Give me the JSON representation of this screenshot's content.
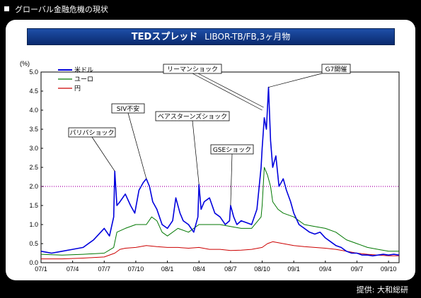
{
  "header": {
    "title": "グローバル金融危機の現状"
  },
  "chart_title": {
    "main": "TEDスプレッド",
    "sub": "LIBOR-TB/FB,3ヶ月物"
  },
  "credit": "提供: 大和総研",
  "colors": {
    "usd": "#0000dd",
    "eur": "#007700",
    "jpy": "#cc0000",
    "ref": "#aa00aa",
    "title_bg": "#1e4fa8"
  },
  "chart_data": {
    "type": "line",
    "ylabel": "(%)",
    "ylim": [
      0,
      5
    ],
    "yticks": [
      "0.0",
      "0.5",
      "1.0",
      "1.5",
      "2.0",
      "2.5",
      "3.0",
      "3.5",
      "4.0",
      "4.5",
      "5.0"
    ],
    "xticks": [
      "07/1",
      "07/4",
      "07/7",
      "07/10",
      "08/1",
      "08/4",
      "08/7",
      "08/10",
      "09/1",
      "09/4",
      "09/7",
      "09/10"
    ],
    "xlim": [
      0,
      34
    ],
    "grid": false,
    "legend_placement": "top-left",
    "reference_line": {
      "y": 2.0,
      "style": "dotted"
    },
    "series": [
      {
        "name": "米ドル",
        "color": "#0000dd",
        "x": [
          0,
          1,
          2,
          3,
          4,
          5,
          6,
          6.5,
          6.9,
          7,
          7.2,
          7.5,
          8,
          8.5,
          8.9,
          9.3,
          9.7,
          10,
          10.3,
          10.6,
          11,
          11.5,
          12,
          12.5,
          12.8,
          13.2,
          13.5,
          14,
          14.5,
          14.9,
          15,
          15.2,
          15.5,
          16,
          16.5,
          17,
          17.5,
          17.9,
          18,
          18.3,
          18.6,
          19,
          19.5,
          20,
          20.5,
          20.9,
          21,
          21.2,
          21.4,
          21.6,
          21.8,
          22,
          22.3,
          22.6,
          23,
          23.3,
          23.7,
          24,
          24.5,
          25,
          25.5,
          26,
          26.5,
          27,
          27.5,
          28,
          28.5,
          29,
          29.5,
          30,
          30.5,
          31,
          31.5,
          32,
          32.5,
          33,
          33.5,
          34
        ],
        "values": [
          0.3,
          0.25,
          0.3,
          0.35,
          0.4,
          0.6,
          0.9,
          0.7,
          1.2,
          2.4,
          1.5,
          1.6,
          1.8,
          1.5,
          1.3,
          1.9,
          2.1,
          2.2,
          2.0,
          1.6,
          1.4,
          1.0,
          0.9,
          1.1,
          1.7,
          1.3,
          1.1,
          1.0,
          0.8,
          1.2,
          2.05,
          1.4,
          1.6,
          1.7,
          1.3,
          1.2,
          1.0,
          1.1,
          1.5,
          1.2,
          1.0,
          1.1,
          1.05,
          1.0,
          1.4,
          2.5,
          3.0,
          3.8,
          3.5,
          4.6,
          3.2,
          2.5,
          2.8,
          2.0,
          2.2,
          1.9,
          1.6,
          1.3,
          1.0,
          0.9,
          0.8,
          0.75,
          0.8,
          0.65,
          0.55,
          0.45,
          0.4,
          0.3,
          0.25,
          0.25,
          0.2,
          0.2,
          0.18,
          0.2,
          0.22,
          0.2,
          0.22,
          0.2
        ]
      },
      {
        "name": "ユーロ",
        "color": "#007700",
        "x": [
          0,
          2,
          4,
          6,
          6.9,
          7.2,
          8,
          9,
          10,
          10.5,
          11,
          11.5,
          12,
          13,
          14,
          15,
          16,
          17,
          18,
          19,
          20,
          20.9,
          21,
          21.2,
          21.5,
          21.8,
          22,
          22.5,
          23,
          24,
          25,
          26,
          27,
          28,
          29,
          30,
          31,
          32,
          33,
          34
        ],
        "values": [
          0.22,
          0.2,
          0.22,
          0.25,
          0.4,
          0.8,
          0.9,
          1.0,
          1.0,
          1.2,
          1.1,
          0.8,
          0.7,
          0.9,
          0.8,
          1.0,
          1.0,
          1.0,
          0.95,
          0.9,
          0.9,
          1.2,
          1.5,
          2.5,
          2.3,
          2.0,
          1.6,
          1.4,
          1.3,
          1.2,
          1.0,
          0.95,
          0.9,
          0.8,
          0.6,
          0.5,
          0.4,
          0.35,
          0.3,
          0.3
        ]
      },
      {
        "name": "円",
        "color": "#cc0000",
        "x": [
          0,
          2,
          4,
          6,
          7,
          7.5,
          8,
          9,
          10,
          11,
          12,
          13,
          14,
          15,
          16,
          17,
          18,
          19,
          20,
          21,
          21.5,
          22,
          23,
          24,
          25,
          26,
          27,
          28,
          29,
          30,
          31,
          32,
          33,
          34
        ],
        "values": [
          0.1,
          0.1,
          0.12,
          0.15,
          0.25,
          0.35,
          0.38,
          0.4,
          0.45,
          0.42,
          0.4,
          0.4,
          0.38,
          0.4,
          0.35,
          0.35,
          0.32,
          0.33,
          0.35,
          0.4,
          0.5,
          0.55,
          0.5,
          0.45,
          0.42,
          0.4,
          0.38,
          0.35,
          0.3,
          0.25,
          0.22,
          0.2,
          0.18,
          0.18
        ]
      }
    ],
    "annotations": [
      {
        "text": "パリバショック",
        "x": 7.0,
        "y": 2.4
      },
      {
        "text": "SIV不安",
        "x": 10.0,
        "y": 2.2
      },
      {
        "text": "ベアスターンズショック",
        "x": 15.0,
        "y": 2.05
      },
      {
        "text": "GSEショック",
        "x": 18.0,
        "y": 1.5
      },
      {
        "text": "リーマンショック",
        "x": 21.0,
        "y": 4.0
      },
      {
        "text": "G7開催",
        "x": 21.6,
        "y": 4.6
      }
    ]
  }
}
